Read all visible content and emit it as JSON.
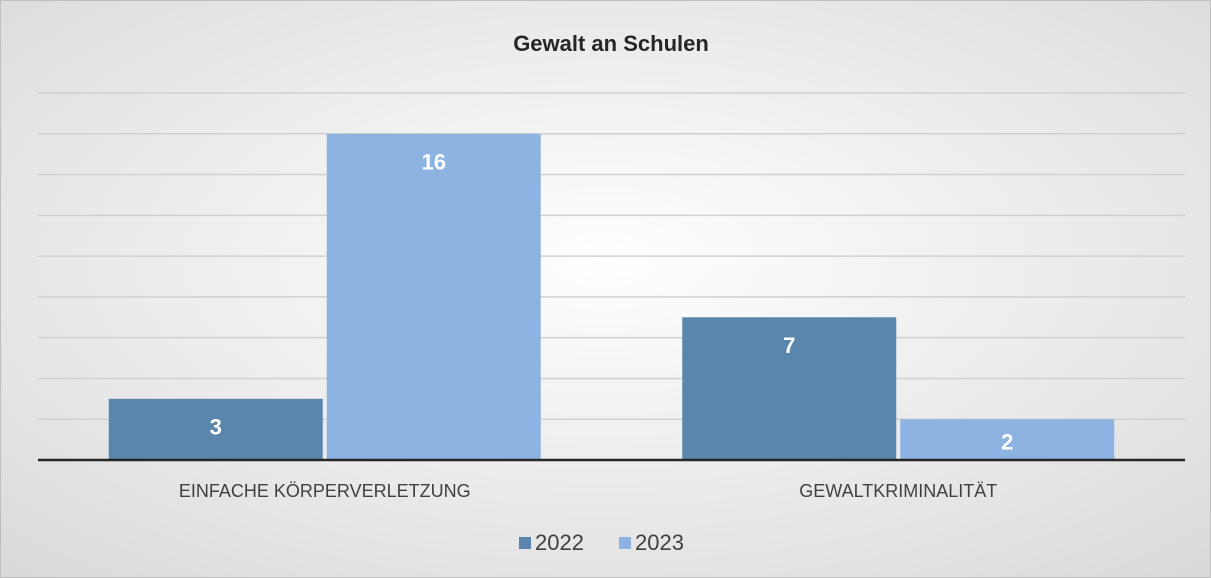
{
  "chart_data": {
    "type": "bar",
    "title": "Gewalt an Schulen",
    "categories": [
      "EINFACHE KÖRPERVERLETZUNG",
      "GEWALTKRIMINALITÄT"
    ],
    "series": [
      {
        "name": "2022",
        "color": "#5a86ad",
        "values": [
          3,
          7
        ]
      },
      {
        "name": "2023",
        "color": "#8db3e2",
        "values": [
          16,
          2
        ]
      }
    ],
    "ylim": [
      0,
      18
    ],
    "yticks": [
      0,
      2,
      4,
      6,
      8,
      10,
      12,
      14,
      16,
      18
    ],
    "grid": true,
    "legend": "bottom"
  }
}
